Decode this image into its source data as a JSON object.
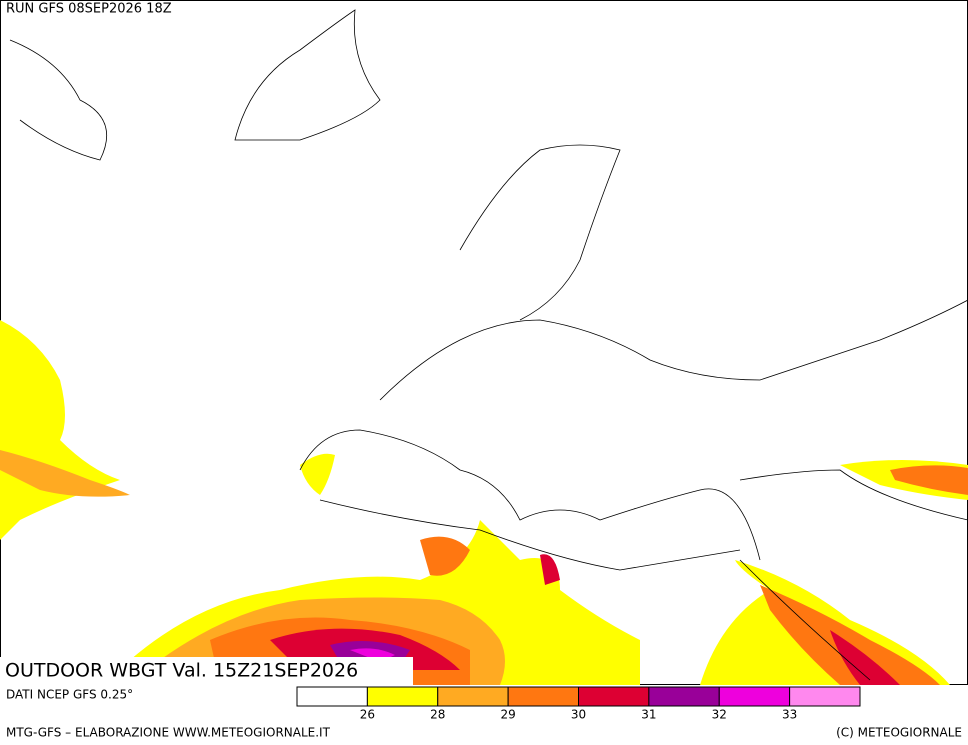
{
  "header": {
    "run": "RUN GFS 08SEP2026 18Z"
  },
  "map": {
    "title": "OUTDOOR WBGT Val. 15Z21SEP2026"
  },
  "legend": {
    "source": "DATI NCEP GFS 0.25°",
    "colors": [
      "#ffffff",
      "#ffff00",
      "#ffaa22",
      "#ff7711",
      "#dd0033",
      "#990099",
      "#ee00dd",
      "#ff88ee"
    ],
    "levels": [
      26,
      28,
      29,
      30,
      31,
      32,
      33
    ]
  },
  "footer": {
    "left": "MTG-GFS – ELABORAZIONE WWW.METEOGIORNALE.IT",
    "right": "(C) METEOGIORNALE"
  }
}
